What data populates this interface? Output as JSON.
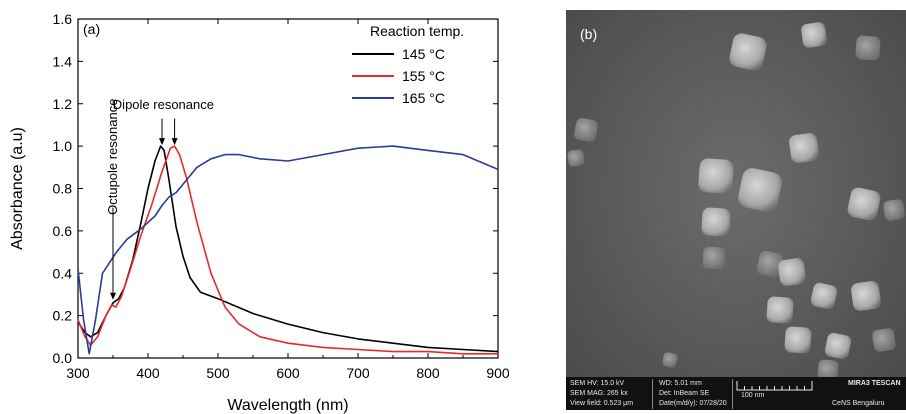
{
  "chart_data": {
    "type": "line",
    "panel_label": "(a)",
    "xlabel": "Wavelength (nm)",
    "ylabel": "Absorbance (a.u)",
    "xlim": [
      300,
      900
    ],
    "ylim": [
      0,
      1.6
    ],
    "x_ticks": [
      "300",
      "400",
      "500",
      "600",
      "700",
      "800",
      "900"
    ],
    "y_ticks": [
      "0.0",
      "0.2",
      "0.4",
      "0.6",
      "0.8",
      "1.0",
      "1.2",
      "1.4",
      "1.6"
    ],
    "legend_title": "Reaction temp.",
    "legend_position": "top-right",
    "grid": false,
    "annotations": [
      {
        "text": "Dipole resonance",
        "targets": [
          [
            420,
            1.0
          ],
          [
            438,
            1.0
          ]
        ]
      },
      {
        "text": "Octupole resonance",
        "targets": [
          [
            350,
            0.27
          ]
        ]
      }
    ],
    "series": [
      {
        "name": "145 °C",
        "color": "#000000",
        "x": [
          300,
          310,
          318,
          328,
          340,
          350,
          358,
          366,
          378,
          390,
          400,
          410,
          418,
          423,
          430,
          440,
          450,
          460,
          475,
          500,
          550,
          600,
          650,
          700,
          750,
          800,
          850,
          900
        ],
        "y": [
          0.17,
          0.12,
          0.1,
          0.12,
          0.2,
          0.26,
          0.28,
          0.33,
          0.46,
          0.64,
          0.8,
          0.93,
          1.0,
          0.98,
          0.84,
          0.62,
          0.48,
          0.38,
          0.31,
          0.28,
          0.21,
          0.16,
          0.12,
          0.09,
          0.07,
          0.05,
          0.04,
          0.03
        ]
      },
      {
        "name": "155 °C",
        "color": "#e8292b",
        "x": [
          300,
          310,
          318,
          328,
          340,
          348,
          354,
          362,
          375,
          390,
          405,
          420,
          432,
          438,
          445,
          455,
          470,
          490,
          510,
          530,
          560,
          600,
          650,
          700,
          750,
          800,
          850,
          900
        ],
        "y": [
          0.18,
          0.1,
          0.06,
          0.1,
          0.2,
          0.25,
          0.24,
          0.29,
          0.42,
          0.58,
          0.72,
          0.88,
          0.99,
          1.0,
          0.96,
          0.85,
          0.64,
          0.4,
          0.24,
          0.16,
          0.1,
          0.07,
          0.05,
          0.04,
          0.03,
          0.03,
          0.02,
          0.02
        ]
      },
      {
        "name": "165 °C",
        "color": "#2b3c99",
        "x": [
          300,
          308,
          316,
          325,
          335,
          345,
          355,
          370,
          390,
          410,
          420,
          430,
          440,
          455,
          470,
          490,
          510,
          530,
          560,
          600,
          650,
          700,
          750,
          800,
          850,
          900
        ],
        "y": [
          0.42,
          0.18,
          0.02,
          0.18,
          0.4,
          0.45,
          0.5,
          0.56,
          0.61,
          0.67,
          0.72,
          0.76,
          0.78,
          0.84,
          0.9,
          0.94,
          0.96,
          0.96,
          0.94,
          0.93,
          0.96,
          0.99,
          1.0,
          0.98,
          0.96,
          0.89
        ]
      }
    ]
  },
  "sem_image": {
    "panel_label": "(b)",
    "hv": "SEM HV: 15.0 kV",
    "wd": "WD: 5.01 mm",
    "scale_label": "100 nm",
    "brand": "MIRA3 TESCAN",
    "mag": "SEM MAG: 265 kx",
    "detector": "Det: InBeam SE",
    "view_field": "View field: 0.523 μm",
    "date": "Date(m/d/y): 07/28/20",
    "lab": "CeNS Bengaluru"
  }
}
